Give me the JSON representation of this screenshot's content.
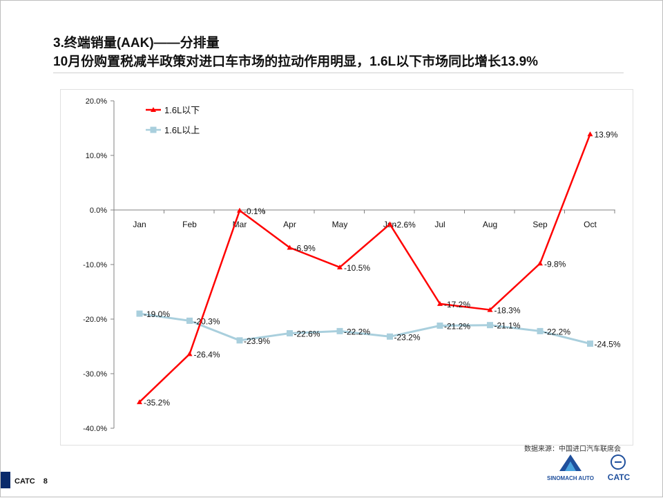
{
  "title": {
    "line1": "3.终端销量(AAK)——分排量",
    "line2": "10月份购置税减半政策对进口车市场的拉动作用明显，1.6L以下市场同比增长13.9%"
  },
  "source": "数据来源：中国进口汽车联席会",
  "footer": {
    "org": "CATC",
    "page": "8"
  },
  "logos": {
    "sinomach": "SINOMACH AUTO",
    "catc": "CATC"
  },
  "colors": {
    "series_below": "#ff0000",
    "series_above": "#a9cfdd",
    "axis": "#808080"
  },
  "chart_data": {
    "type": "line",
    "categories": [
      "Jan",
      "Feb",
      "Mar",
      "Apr",
      "May",
      "Jun",
      "Jul",
      "Aug",
      "Sep",
      "Oct"
    ],
    "ylim": [
      -40,
      20
    ],
    "yticks": [
      20,
      10,
      0,
      -10,
      -20,
      -30,
      -40
    ],
    "ytick_labels": [
      "20.0%",
      "10.0%",
      "0.0%",
      "-10.0%",
      "-20.0%",
      "-30.0%",
      "-40.0%"
    ],
    "legend_position": "top-left",
    "series": [
      {
        "name": "1.6L以下",
        "color": "#ff0000",
        "marker": "triangle",
        "values": [
          -35.2,
          -26.4,
          -0.1,
          -6.9,
          -10.5,
          -2.6,
          -17.2,
          -18.3,
          -9.8,
          13.9
        ],
        "labels": [
          "-35.2%",
          "-26.4%",
          "-0.1%",
          "-6.9%",
          "-10.5%",
          "-2.6%",
          "-17.2%",
          "-18.3%",
          "-9.8%",
          "13.9%"
        ]
      },
      {
        "name": "1.6L以上",
        "color": "#a9cfdd",
        "marker": "square",
        "values": [
          -19.0,
          -20.3,
          -23.9,
          -22.6,
          -22.2,
          -23.2,
          -21.2,
          -21.1,
          -22.2,
          -24.5
        ],
        "labels": [
          "-19.0%",
          "-20.3%",
          "-23.9%",
          "-22.6%",
          "-22.2%",
          "-23.2%",
          "-21.2%",
          "-21.1%",
          "-22.2%",
          "-24.5%"
        ]
      }
    ]
  }
}
